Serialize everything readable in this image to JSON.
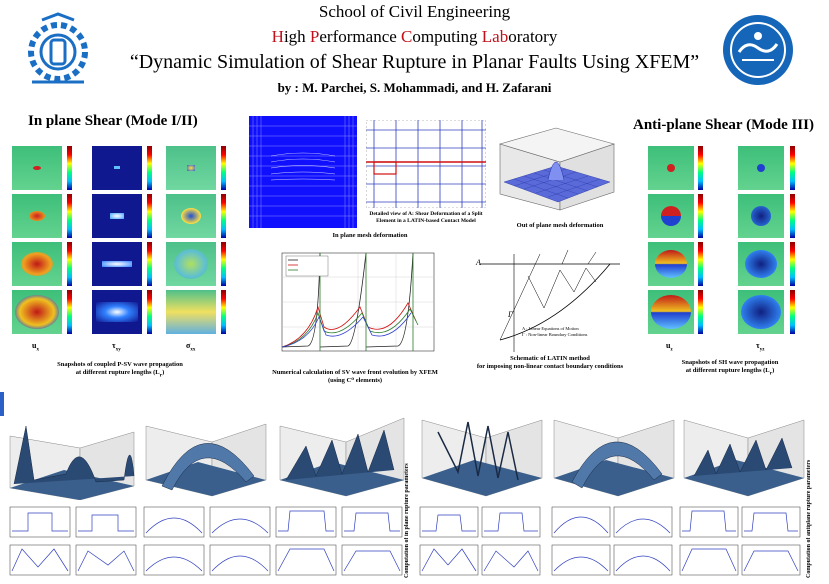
{
  "header": {
    "school": "School of Civil Engineering",
    "lab_words": [
      {
        "first": "H",
        "rest": "igh "
      },
      {
        "first": "P",
        "rest": "erformance "
      },
      {
        "first": "C",
        "rest": "omputing "
      },
      {
        "first": "Lab",
        "rest": "oratory"
      }
    ],
    "title": "“Dynamic Simulation of Shear Rupture in Planar Faults Using XFEM”",
    "authors": "by : M. Parchei, S. Mohammadi, and H. Zafarani"
  },
  "sections": {
    "inplane_title": "In plane Shear (Mode I/II)",
    "antiplane_title": "Anti-plane Shear (Mode III)"
  },
  "inplane": {
    "col_labels": [
      "u",
      "τ",
      "σ"
    ],
    "col_subs": [
      "x",
      "xy",
      "xx"
    ],
    "caption_line1": "Snapshots of coupled P-SV wave propagation",
    "caption_line2": "at different rupture lengths (L",
    "caption_sub": "r",
    "caption_end": ")"
  },
  "antiplane": {
    "col_labels": [
      "u",
      "τ"
    ],
    "col_subs": [
      "z",
      "yz"
    ],
    "caption_line1": "Snapshots of SH wave propagation",
    "caption_line2": "at different rupture lengths (L",
    "caption_sub": "r",
    "caption_end": ")"
  },
  "mesh": {
    "detail_caption": "Detailed view of A: Shear Deformation of a Split Element in a LATIN-based Contact Model",
    "inplane_caption": "In plane mesh deformation",
    "outplane_caption": "Out of plane mesh deformation"
  },
  "sv_plot": {
    "caption_line1": "Numerical calculation of SV wave front evolution by XFEM",
    "caption_line2": "(using C⁰ elements)"
  },
  "latin": {
    "caption_line1": "Schematic of LATIN method",
    "caption_line2": "for imposing non-linear contact boundary conditions",
    "legend_a": "A : Linear Equations of Motion",
    "legend_gamma": "Γ : Non-linear Boundary Conditions",
    "point_a": "A",
    "point_gamma": "Γ"
  },
  "side_labels": {
    "left": "Computation of in plane rupture parameters",
    "right": "Computation of antiplane rupture parameters"
  },
  "colors": {
    "accent_red": "#c0101a",
    "surface_blue": "#3a5f8c",
    "mesh_blue": "#0000ff"
  }
}
